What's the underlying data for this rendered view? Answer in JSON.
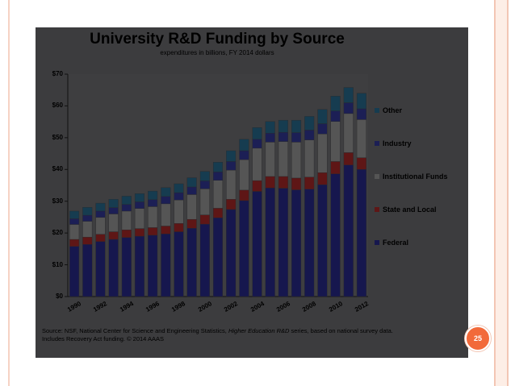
{
  "slide": {
    "footnote_line1_pre": "Source: NSF, National Center for Science and Engineering Statistics, ",
    "footnote_line1_italic": "Higher Education R&D",
    "footnote_line1_post": " series, based on national survey data.",
    "footnote_line2": "Includes Recovery Act funding. © 2014 AAAS",
    "page_number": "25"
  },
  "colors": {
    "Federal": "#16174e",
    "State and Local": "#5e1616",
    "Institutional Funds": "#555555",
    "Industry": "#1c1f55",
    "Other": "#163c50"
  },
  "chart_data": {
    "type": "bar",
    "stacked": true,
    "title": "University R&D Funding by Source",
    "subtitle": "expenditures in billions, FY 2014 dollars",
    "xlabel": "",
    "ylabel": "",
    "ylim": [
      0,
      70
    ],
    "yticks": [
      "$0",
      "$10",
      "$20",
      "$30",
      "$40",
      "$50",
      "$60",
      "$70"
    ],
    "ytick_values": [
      0,
      10,
      20,
      30,
      40,
      50,
      60,
      70
    ],
    "x": [
      1990,
      1991,
      1992,
      1993,
      1994,
      1995,
      1996,
      1997,
      1998,
      1999,
      2000,
      2001,
      2002,
      2003,
      2004,
      2005,
      2006,
      2007,
      2008,
      2009,
      2010,
      2011,
      2012
    ],
    "xtick_labels": [
      "1990",
      "1992",
      "1994",
      "1996",
      "1998",
      "2000",
      "2002",
      "2004",
      "2006",
      "2008",
      "2010",
      "2012"
    ],
    "legend_position": "right",
    "legend_order": [
      "Other",
      "Industry",
      "Institutional Funds",
      "State and Local",
      "Federal"
    ],
    "series": [
      {
        "name": "Federal",
        "values": [
          15.8,
          16.4,
          17.3,
          18.0,
          18.6,
          19.0,
          19.3,
          19.7,
          20.4,
          21.5,
          22.8,
          24.8,
          27.4,
          30.2,
          33.1,
          34.2,
          34.1,
          33.6,
          33.8,
          35.2,
          38.6,
          41.4,
          40.0
        ]
      },
      {
        "name": "State and Local",
        "values": [
          2.2,
          2.3,
          2.3,
          2.4,
          2.4,
          2.4,
          2.4,
          2.5,
          2.6,
          2.8,
          2.9,
          3.0,
          3.2,
          3.3,
          3.4,
          3.6,
          3.7,
          3.7,
          3.8,
          3.8,
          3.9,
          3.9,
          3.7
        ]
      },
      {
        "name": "Institutional Funds",
        "values": [
          4.7,
          5.0,
          5.3,
          5.6,
          5.9,
          6.3,
          6.6,
          7.0,
          7.4,
          7.8,
          8.2,
          8.8,
          9.2,
          9.6,
          10.2,
          10.8,
          11.0,
          11.3,
          11.7,
          12.2,
          12.6,
          12.3,
          12.0
        ]
      },
      {
        "name": "Industry",
        "values": [
          1.8,
          1.9,
          2.0,
          2.0,
          2.1,
          2.1,
          2.2,
          2.3,
          2.3,
          2.4,
          2.5,
          2.6,
          2.7,
          2.8,
          2.8,
          2.8,
          2.9,
          3.0,
          3.1,
          3.2,
          3.3,
          3.4,
          3.4
        ]
      },
      {
        "name": "Other",
        "values": [
          2.4,
          2.5,
          2.5,
          2.6,
          2.6,
          2.6,
          2.7,
          2.8,
          2.8,
          2.9,
          3.0,
          3.1,
          3.4,
          3.6,
          3.7,
          3.7,
          3.8,
          3.9,
          4.3,
          4.5,
          4.7,
          4.8,
          4.9
        ]
      }
    ]
  }
}
